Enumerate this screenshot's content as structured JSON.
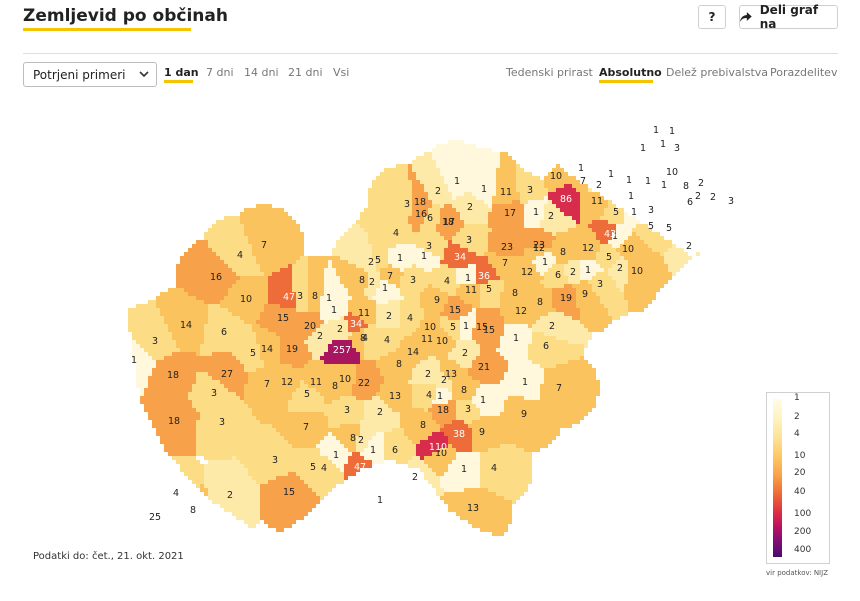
{
  "header": {
    "title": "Zemljevid po občinah",
    "help_label": "?",
    "share_label": "Deli graf na"
  },
  "controls": {
    "select_value": "Potrjeni primeri",
    "time_tabs": [
      {
        "label": "1 dan",
        "active": true
      },
      {
        "label": "7 dni",
        "active": false
      },
      {
        "label": "14 dni",
        "active": false
      },
      {
        "label": "21 dni",
        "active": false
      },
      {
        "label": "Vsi",
        "active": false
      }
    ],
    "mode_tabs": [
      {
        "label": "Tedenski prirast",
        "active": false
      },
      {
        "label": "Absolutno",
        "active": true
      },
      {
        "label": "Delež prebivalstva",
        "active": false
      },
      {
        "label": "Porazdelitev",
        "active": false
      }
    ]
  },
  "legend": {
    "labels": [
      "1",
      "2",
      "4",
      "10",
      "20",
      "40",
      "100",
      "200",
      "400"
    ],
    "source": "vir podatkov: NIJZ"
  },
  "footer": {
    "data_date": "Podatki do: čet., 21. okt. 2021"
  },
  "colors": {
    "accent": "#f5c400",
    "c1": "#fff8dc",
    "c2": "#fdeaa8",
    "c4": "#fddc86",
    "c10": "#fbc35e",
    "c20": "#f7a24a",
    "c40": "#ee6b3a",
    "c100": "#d72c4c",
    "c200": "#a8165f",
    "c400": "#6c0b6c",
    "none": "#ffffff"
  },
  "municipality_values": [
    "1",
    "1",
    "1",
    "1",
    "3",
    "1",
    "7",
    "2",
    "10",
    "1",
    "1",
    "1",
    "10",
    "8",
    "2",
    "2",
    "1",
    "1",
    "86",
    "11",
    "6",
    "1",
    "5",
    "3",
    "2",
    "3",
    "18",
    "2",
    "1",
    "1",
    "2",
    "11",
    "3",
    "17",
    "1",
    "2",
    "6",
    "17",
    "3",
    "16",
    "18",
    "3",
    "4",
    "23",
    "12",
    "8",
    "23",
    "12",
    "1",
    "43",
    "10",
    "5",
    "5",
    "2",
    "5",
    "10",
    "2",
    "1",
    "3",
    "2",
    "6",
    "1",
    "34",
    "3",
    "7",
    "12",
    "5",
    "1",
    "3",
    "1",
    "7",
    "1",
    "8",
    "2",
    "5",
    "1",
    "36",
    "8",
    "19",
    "9",
    "8",
    "4",
    "9",
    "16",
    "4",
    "7",
    "14",
    "47",
    "1",
    "10",
    "2",
    "1",
    "3",
    "8",
    "11",
    "2",
    "4",
    "10",
    "5",
    "1",
    "11",
    "15",
    "12",
    "15",
    "20",
    "2",
    "34",
    "8",
    "4",
    "15",
    "2",
    "14",
    "6",
    "5",
    "257",
    "14",
    "8",
    "4",
    "11",
    "10",
    "15",
    "2",
    "6",
    "19",
    "2",
    "1",
    "1",
    "3",
    "18",
    "27",
    "7",
    "12",
    "11",
    "8",
    "22",
    "10",
    "21",
    "1",
    "7",
    "5",
    "2",
    "13",
    "13",
    "4",
    "2",
    "1",
    "9",
    "18",
    "3",
    "7",
    "18",
    "3",
    "3",
    "2",
    "1",
    "3",
    "8",
    "2",
    "8",
    "8",
    "1",
    "15",
    "3",
    "4",
    "5",
    "38",
    "1",
    "6",
    "10",
    "9",
    "1",
    "4",
    "47",
    "2",
    "110",
    "4",
    "8",
    "2",
    "25",
    "13",
    "1"
  ]
}
